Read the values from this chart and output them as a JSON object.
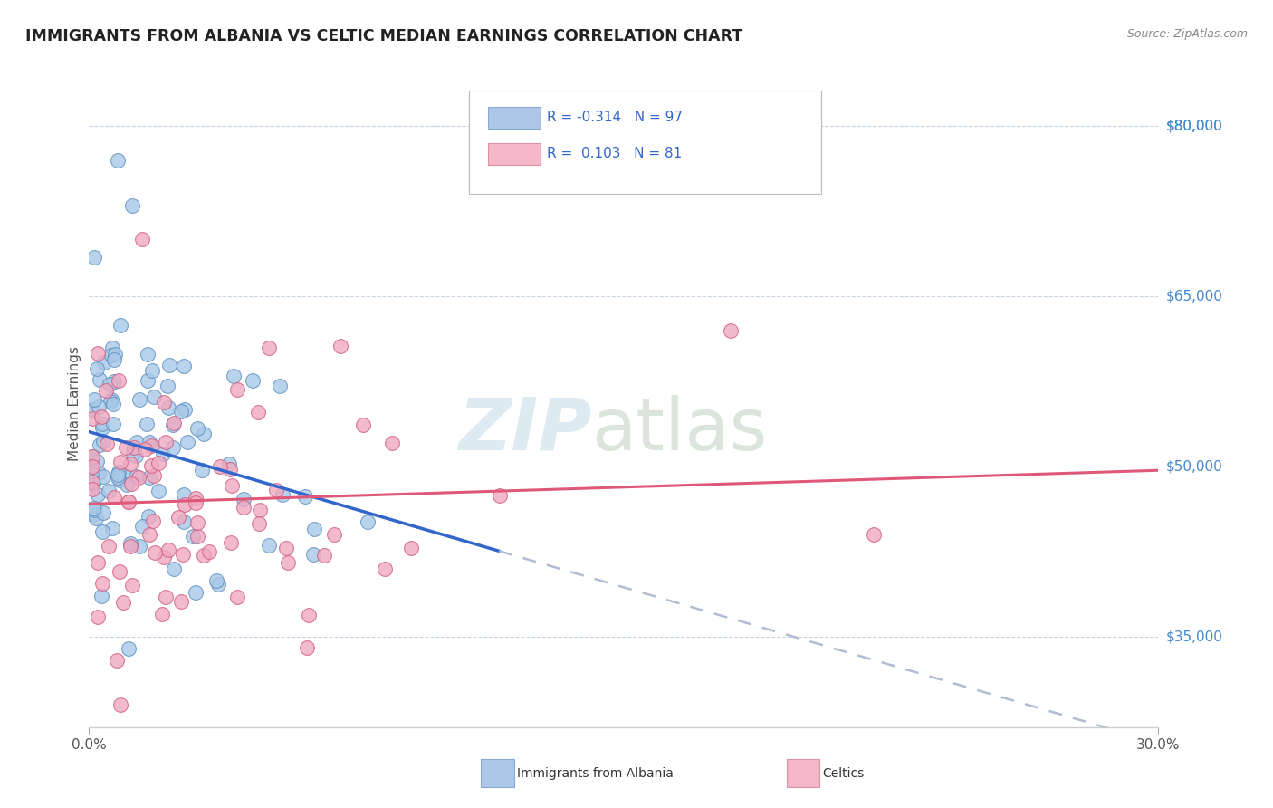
{
  "title": "IMMIGRANTS FROM ALBANIA VS CELTIC MEDIAN EARNINGS CORRELATION CHART",
  "source": "Source: ZipAtlas.com",
  "ylabel": "Median Earnings",
  "xmin": 0.0,
  "xmax": 0.3,
  "ymin": 27000,
  "ymax": 84000,
  "yticks": [
    35000,
    50000,
    65000,
    80000
  ],
  "ytick_labels": [
    "$35,000",
    "$50,000",
    "$65,000",
    "$80,000"
  ],
  "series_albania": {
    "color": "#a8c8e8",
    "edge_color": "#6090c0",
    "trend_color": "#3366cc",
    "trend_extend_color": "#b0bcd0"
  },
  "series_celtic": {
    "color": "#f0a8c0",
    "edge_color": "#d06080",
    "trend_color": "#e05878"
  },
  "legend_box_color": "#aec6e8",
  "legend_pink_color": "#f4b8c8",
  "legend_text_color": "#3366cc",
  "watermark_zip_color": "#c8dce8",
  "watermark_atlas_color": "#b8ccb8",
  "background_color": "#ffffff",
  "grid_color": "#c8d4e0",
  "title_color": "#222222",
  "source_color": "#888888",
  "tick_color_right": "#4488cc",
  "tick_color_bottom": "#555555",
  "bottom_legend_blue": "#88b8d8",
  "bottom_legend_pink": "#f0a8c0"
}
